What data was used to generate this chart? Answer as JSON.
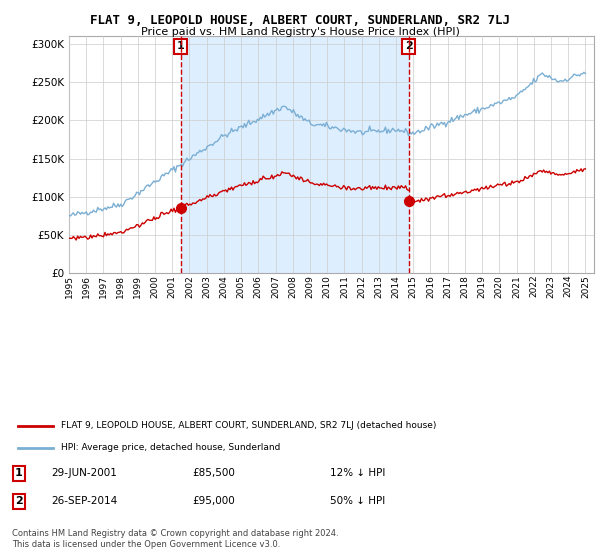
{
  "title": "FLAT 9, LEOPOLD HOUSE, ALBERT COURT, SUNDERLAND, SR2 7LJ",
  "subtitle": "Price paid vs. HM Land Registry's House Price Index (HPI)",
  "ylim": [
    0,
    310000
  ],
  "yticks": [
    0,
    50000,
    100000,
    150000,
    200000,
    250000,
    300000
  ],
  "sale1_date": "29-JUN-2001",
  "sale1_price": 85500,
  "sale1_label": "12% ↓ HPI",
  "sale2_date": "26-SEP-2014",
  "sale2_price": 95000,
  "sale2_label": "50% ↓ HPI",
  "sale1_x": 2001.49,
  "sale2_x": 2014.73,
  "red_line_color": "#cc0000",
  "blue_line_color": "#7bafd4",
  "shade_color": "#ddeeff",
  "marker_color": "#cc0000",
  "vline_color": "#cc0000",
  "grid_color": "#cccccc",
  "bg_color": "#ffffff",
  "legend_label_red": "FLAT 9, LEOPOLD HOUSE, ALBERT COURT, SUNDERLAND, SR2 7LJ (detached house)",
  "legend_label_blue": "HPI: Average price, detached house, Sunderland",
  "footer": "Contains HM Land Registry data © Crown copyright and database right 2024.\nThis data is licensed under the Open Government Licence v3.0.",
  "xlim": [
    1995,
    2025.5
  ],
  "xticks": [
    1995,
    1996,
    1997,
    1998,
    1999,
    2000,
    2001,
    2002,
    2003,
    2004,
    2005,
    2006,
    2007,
    2008,
    2009,
    2010,
    2011,
    2012,
    2013,
    2014,
    2015,
    2016,
    2017,
    2018,
    2019,
    2020,
    2021,
    2022,
    2023,
    2024,
    2025
  ]
}
